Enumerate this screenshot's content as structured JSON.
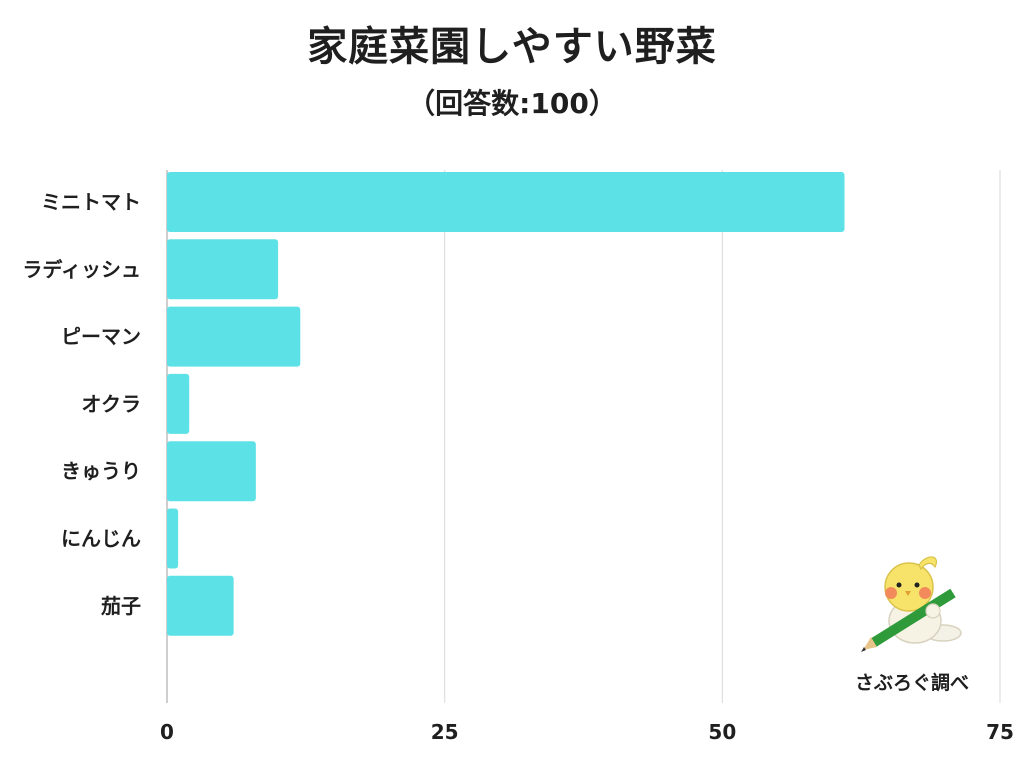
{
  "title": "家庭菜園しやすい野菜",
  "subtitle": "（回答数:100）",
  "credit": "さぶろぐ調べ",
  "colors": {
    "bar": "#5ce1e6",
    "grid": "#d9d9d9",
    "axis": "#bdbdbd",
    "text": "#1f1f1f"
  },
  "mascot": {
    "icon": "bird-with-pencil-icon"
  },
  "chart_data": {
    "type": "bar",
    "orientation": "horizontal",
    "categories": [
      "ミニトマト",
      "ラディッシュ",
      "ピーマン",
      "オクラ",
      "きゅうり",
      "にんじん",
      "茄子"
    ],
    "values": [
      61,
      10,
      12,
      2,
      8,
      1,
      6
    ],
    "xticks": [
      "0",
      "25",
      "50",
      "75"
    ],
    "xlim": [
      0,
      75
    ],
    "grid": true
  }
}
